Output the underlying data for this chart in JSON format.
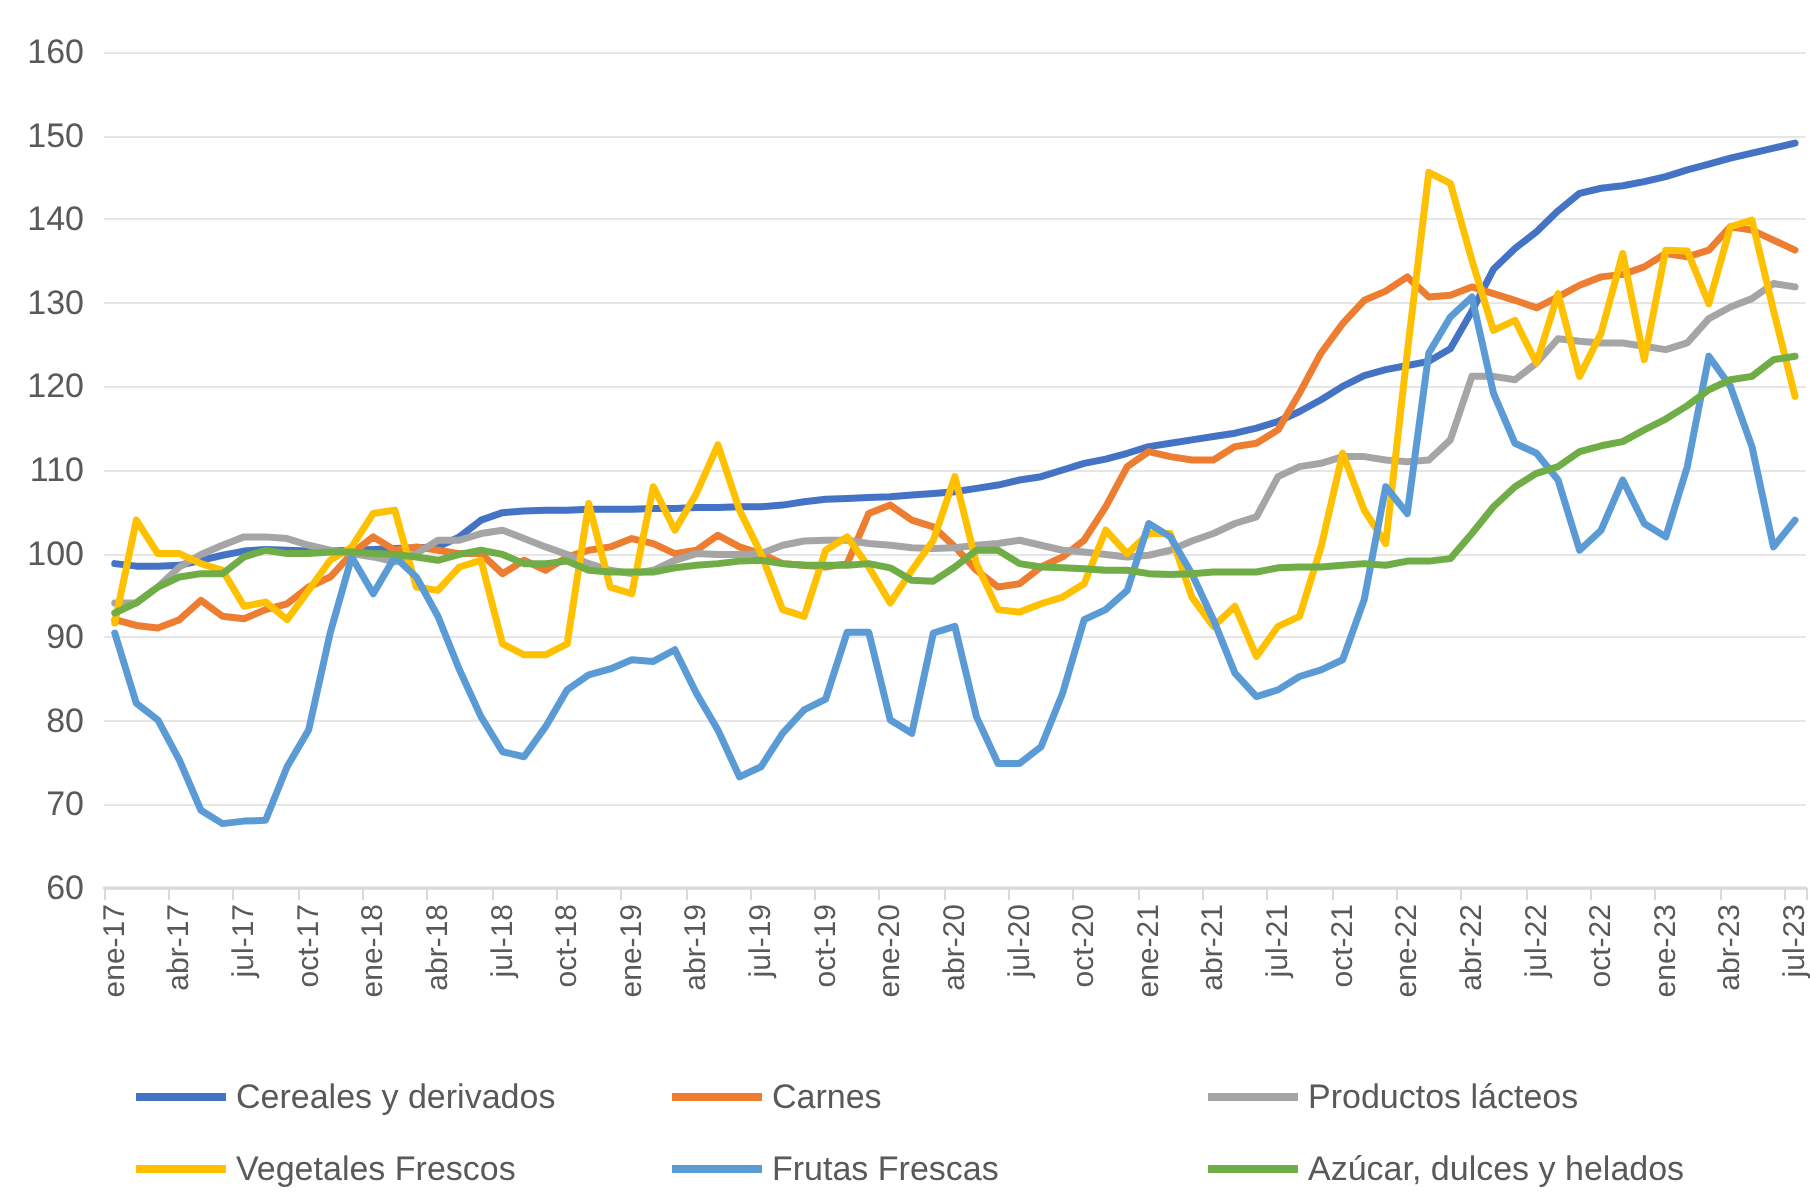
{
  "chart_data": {
    "type": "line",
    "categories": [
      "ene-17",
      null,
      null,
      "abr-17",
      null,
      null,
      "jul-17",
      null,
      null,
      "oct-17",
      null,
      null,
      "ene-18",
      null,
      null,
      "abr-18",
      null,
      null,
      "jul-18",
      null,
      null,
      "oct-18",
      null,
      null,
      "ene-19",
      null,
      null,
      "abr-19",
      null,
      null,
      "jul-19",
      null,
      null,
      "oct-19",
      null,
      null,
      "ene-20",
      null,
      null,
      "abr-20",
      null,
      null,
      "jul-20",
      null,
      null,
      "oct-20",
      null,
      null,
      "ene-21",
      null,
      null,
      "abr-21",
      null,
      null,
      "jul-21",
      null,
      null,
      "oct-21",
      null,
      null,
      "ene-22",
      null,
      null,
      "abr-22",
      null,
      null,
      "jul-22",
      null,
      null,
      "oct-22",
      null,
      null,
      "ene-23",
      null,
      null,
      "abr-23",
      null,
      null,
      "jul-23"
    ],
    "ylim": [
      60,
      160
    ],
    "yticks": [
      60,
      70,
      80,
      90,
      100,
      110,
      120,
      130,
      140,
      150,
      160
    ],
    "grid": "y",
    "legend": "bottom",
    "marker": "none",
    "line_style": "solid",
    "series": [
      {
        "name": "Cereales y derivados",
        "color": "#4472c4",
        "values": [
          98.8,
          98.5,
          98.5,
          98.6,
          99.2,
          99.8,
          100.3,
          100.5,
          100.4,
          100.3,
          100.3,
          100.4,
          100.5,
          100.6,
          100.7,
          100.8,
          102.0,
          104.0,
          104.9,
          105.1,
          105.2,
          105.2,
          105.3,
          105.3,
          105.3,
          105.4,
          105.4,
          105.5,
          105.5,
          105.6,
          105.6,
          105.8,
          106.2,
          106.5,
          106.6,
          106.7,
          106.8,
          107.0,
          107.2,
          107.4,
          107.8,
          108.2,
          108.8,
          109.2,
          110.0,
          110.8,
          111.3,
          112.0,
          112.8,
          113.2,
          113.6,
          114.0,
          114.4,
          115.0,
          115.8,
          117.0,
          118.4,
          120.0,
          121.3,
          122.0,
          122.5,
          123.0,
          124.5,
          129.0,
          134.0,
          136.5,
          138.5,
          141.0,
          143.1,
          143.7,
          144.0,
          144.5,
          145.1,
          145.9,
          146.6,
          147.3,
          147.9,
          148.5,
          149.1
        ]
      },
      {
        "name": "Carnes",
        "color": "#ed7d31",
        "values": [
          92.1,
          91.4,
          91.1,
          92.1,
          94.4,
          92.5,
          92.2,
          93.3,
          94.0,
          96.0,
          97.2,
          100.0,
          102.0,
          100.4,
          100.8,
          100.4,
          100.0,
          100.0,
          97.6,
          99.2,
          98.0,
          99.6,
          100.4,
          100.8,
          101.8,
          101.2,
          100.0,
          100.4,
          102.2,
          100.8,
          100.0,
          98.8,
          98.6,
          98.4,
          98.8,
          104.8,
          105.8,
          104.0,
          103.2,
          100.8,
          98.0,
          96.0,
          96.4,
          98.4,
          99.6,
          101.6,
          105.6,
          110.4,
          112.2,
          111.6,
          111.2,
          111.2,
          112.8,
          113.2,
          114.8,
          119.2,
          124.0,
          127.5,
          130.3,
          131.4,
          133.1,
          130.7,
          130.9,
          131.9,
          131.1,
          130.3,
          129.4,
          130.7,
          132.1,
          133.1,
          133.4,
          134.3,
          135.9,
          135.5,
          136.3,
          139.1,
          138.7,
          137.5,
          136.3
        ]
      },
      {
        "name": "Productos lácteos",
        "color": "#a5a5a5",
        "values": [
          94.1,
          94.1,
          96.0,
          98.4,
          99.9,
          101.0,
          102.0,
          102.0,
          101.8,
          101.0,
          100.4,
          100.0,
          99.6,
          99.0,
          100.0,
          101.6,
          101.6,
          102.4,
          102.8,
          101.8,
          100.8,
          99.9,
          98.8,
          98.0,
          97.6,
          98.0,
          99.2,
          100.0,
          99.9,
          99.9,
          100.0,
          101.0,
          101.5,
          101.6,
          101.6,
          101.2,
          101.0,
          100.7,
          100.6,
          100.7,
          101.0,
          101.2,
          101.6,
          101.0,
          100.4,
          100.2,
          99.9,
          99.6,
          99.8,
          100.4,
          101.5,
          102.4,
          103.6,
          104.4,
          109.2,
          110.4,
          110.8,
          111.6,
          111.6,
          111.2,
          111.0,
          111.2,
          113.6,
          121.2,
          121.2,
          120.8,
          122.8,
          125.7,
          125.4,
          125.2,
          125.2,
          124.8,
          124.4,
          125.2,
          128.1,
          129.5,
          130.5,
          132.3,
          131.9
        ]
      },
      {
        "name": "Vegetales Frescos",
        "color": "#ffc000",
        "values": [
          91.7,
          104.0,
          100.0,
          100.0,
          98.8,
          98.0,
          93.7,
          94.2,
          92.1,
          95.6,
          99.2,
          100.8,
          104.8,
          105.2,
          96.0,
          95.6,
          98.4,
          99.2,
          89.2,
          87.9,
          87.9,
          89.2,
          106.0,
          96.0,
          95.2,
          108.0,
          102.8,
          107.2,
          113.0,
          105.2,
          100.0,
          93.3,
          92.5,
          100.4,
          102.0,
          98.4,
          94.1,
          98.0,
          101.6,
          109.2,
          98.8,
          93.3,
          93.0,
          94.0,
          94.8,
          96.4,
          102.8,
          100.0,
          102.4,
          102.4,
          94.8,
          91.3,
          93.7,
          87.7,
          91.3,
          92.5,
          100.8,
          112.0,
          105.2,
          101.2,
          124.0,
          145.6,
          144.3,
          135.1,
          126.7,
          127.9,
          122.8,
          131.1,
          121.2,
          126.4,
          135.9,
          123.2,
          136.3,
          136.2,
          129.9,
          139.1,
          139.9,
          129.1,
          118.8
        ]
      },
      {
        "name": "Frutas Frescas",
        "color": "#5b9bd5",
        "values": [
          90.5,
          82.1,
          80.1,
          75.3,
          69.3,
          67.7,
          68.0,
          68.1,
          74.5,
          78.9,
          90.5,
          99.6,
          95.2,
          99.6,
          97.2,
          92.5,
          86.1,
          80.5,
          76.3,
          75.7,
          79.3,
          83.7,
          85.5,
          86.2,
          87.3,
          87.1,
          88.5,
          83.3,
          78.9,
          73.3,
          74.5,
          78.5,
          81.3,
          82.6,
          90.6,
          90.6,
          80.1,
          78.5,
          90.5,
          91.3,
          80.5,
          74.9,
          74.9,
          76.9,
          83.3,
          92.1,
          93.3,
          95.6,
          103.6,
          102.0,
          97.6,
          92.1,
          85.7,
          82.9,
          83.7,
          85.3,
          86.1,
          87.3,
          94.5,
          108.0,
          104.8,
          124.0,
          128.3,
          130.7,
          119.2,
          113.2,
          112.0,
          108.8,
          100.4,
          102.8,
          108.8,
          103.6,
          102.0,
          110.4,
          123.6,
          120.0,
          112.8,
          100.8,
          104.0
        ]
      },
      {
        "name": "Azúcar, dulces y helados",
        "color": "#70ad47",
        "values": [
          92.9,
          94.1,
          96.0,
          97.2,
          97.6,
          97.6,
          99.6,
          100.4,
          100.0,
          100.0,
          100.2,
          100.2,
          100.0,
          99.9,
          99.6,
          99.2,
          99.9,
          100.4,
          99.9,
          98.8,
          98.8,
          99.1,
          98.0,
          97.8,
          97.8,
          97.8,
          98.3,
          98.6,
          98.8,
          99.1,
          99.2,
          98.8,
          98.6,
          98.6,
          98.6,
          98.8,
          98.3,
          96.8,
          96.7,
          98.4,
          100.4,
          100.4,
          98.8,
          98.4,
          98.3,
          98.2,
          98.0,
          98.0,
          97.6,
          97.5,
          97.6,
          97.8,
          97.8,
          97.8,
          98.3,
          98.4,
          98.4,
          98.6,
          98.8,
          98.6,
          99.1,
          99.1,
          99.4,
          102.4,
          105.6,
          108.0,
          109.6,
          110.4,
          112.2,
          112.9,
          113.4,
          114.8,
          116.1,
          117.7,
          119.6,
          120.8,
          121.2,
          123.2,
          123.6
        ]
      }
    ]
  }
}
